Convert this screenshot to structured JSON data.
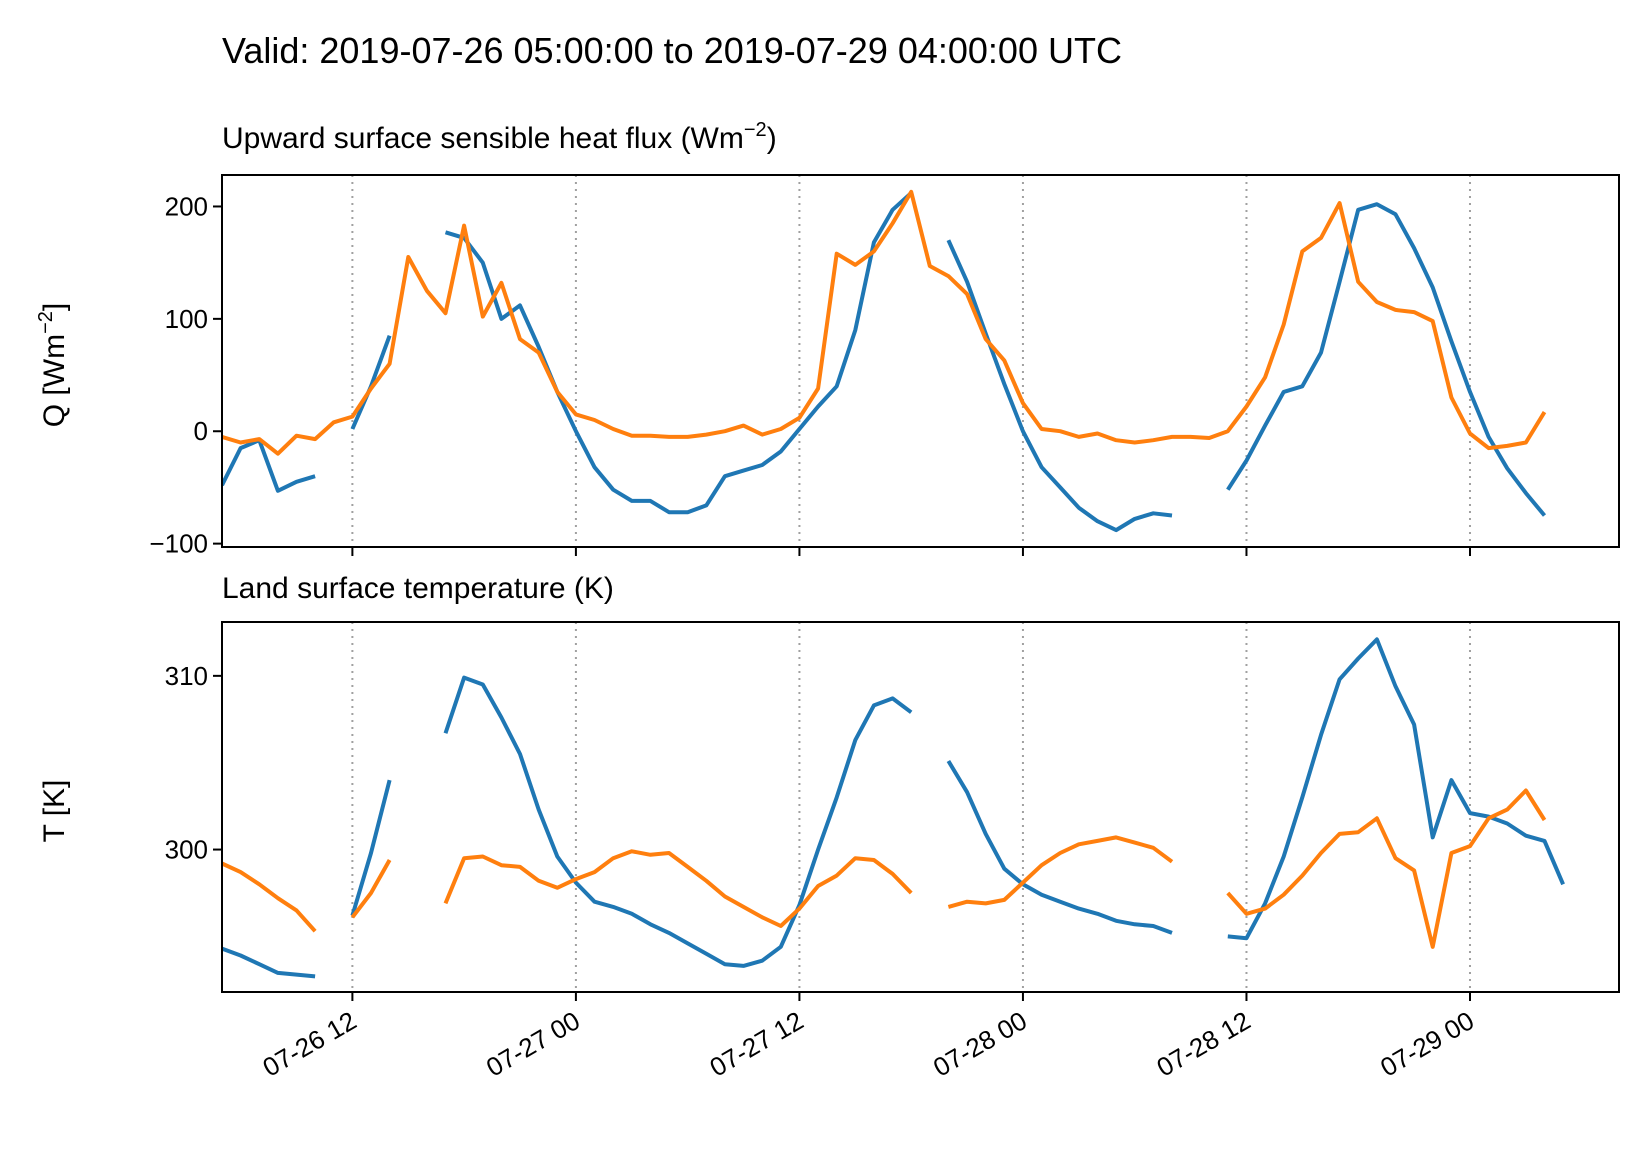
{
  "figure_title": "Valid: 2019-07-26 05:00:00 to 2019-07-29 04:00:00 UTC",
  "colors": {
    "series_1": "#1f77b4",
    "series_2": "#ff7f0e",
    "gridline": "#a0a0a0"
  },
  "chart_data": [
    {
      "type": "line",
      "title_text": "Upward surface sensible heat flux (Wm",
      "title_sup": "−2",
      "title_close": ")",
      "ylabel_text": "Q [Wm",
      "ylabel_sup": "−2",
      "ylabel_close": "]",
      "xlim": [
        "2019-07-26 05:00",
        "2019-07-29 08:00"
      ],
      "ylim": [
        -103,
        228
      ],
      "yticks": [
        200,
        100,
        0,
        -100
      ],
      "ytick_labels": [
        "200",
        "100",
        "0",
        "−100"
      ],
      "xticks": [
        "2019-07-26 12:00",
        "2019-07-27 00:00",
        "2019-07-27 12:00",
        "2019-07-28 00:00",
        "2019-07-28 12:00",
        "2019-07-29 00:00"
      ],
      "xtick_labels": [],
      "vertical_gridlines": true,
      "series": [
        {
          "segments": [
            {
              "start": "2019-07-26 05:00",
              "values": [
                -48,
                -15,
                -8,
                -53,
                -45,
                -40
              ]
            },
            {
              "start": "2019-07-26 12:00",
              "values": [
                2,
                40,
                85
              ]
            },
            {
              "start": "2019-07-26 17:00",
              "values": [
                177,
                172,
                150,
                100,
                112,
                75,
                35,
                0,
                -32,
                -52,
                -62,
                -62,
                -72,
                -72,
                -66,
                -40,
                -35,
                -30,
                -18,
                2,
                22,
                40,
                90,
                168,
                197,
                212
              ]
            },
            {
              "start": "2019-07-27 20:00",
              "values": [
                170,
                133,
                87,
                42,
                0,
                -32,
                -50,
                -68,
                -80,
                -88,
                -78,
                -73,
                -75
              ]
            },
            {
              "start": "2019-07-28 11:00",
              "values": [
                -52,
                -26,
                5,
                35,
                40,
                70,
                133,
                197,
                202,
                193,
                163,
                128,
                80,
                35,
                -5,
                -33,
                -55,
                -75
              ]
            }
          ]
        },
        {
          "segments": [
            {
              "start": "2019-07-26 05:00",
              "values": [
                -5,
                -10,
                -7,
                -20,
                -4,
                -7,
                8,
                13,
                38,
                60,
                155,
                125,
                105,
                183,
                102,
                132,
                82,
                70,
                35,
                15,
                10,
                2,
                -4,
                -4,
                -5,
                -5,
                -3,
                0,
                5,
                -3,
                2,
                12,
                38,
                158,
                148,
                160,
                185,
                213,
                147,
                138,
                122,
                82,
                63,
                25,
                2,
                0,
                -5,
                -2,
                -8,
                -10,
                -8,
                -5,
                -5,
                -6,
                0,
                22,
                48,
                95,
                160,
                172,
                203,
                133,
                115,
                108,
                106,
                98,
                30,
                -2,
                -15,
                -13,
                -10,
                17
              ]
            }
          ]
        }
      ]
    },
    {
      "type": "line",
      "title_text": "Land surface temperature (K)",
      "ylabel_text": "T [K]",
      "xlim": [
        "2019-07-26 05:00",
        "2019-07-29 08:00"
      ],
      "ylim": [
        291.8,
        313.1
      ],
      "yticks": [
        310,
        300
      ],
      "ytick_labels": [
        "310",
        "300"
      ],
      "xticks": [
        "2019-07-26 12:00",
        "2019-07-27 00:00",
        "2019-07-27 12:00",
        "2019-07-28 00:00",
        "2019-07-28 12:00",
        "2019-07-29 00:00"
      ],
      "xtick_labels": [
        "07-26 12",
        "07-27 00",
        "07-27 12",
        "07-28 00",
        "07-28 12",
        "07-29 00"
      ],
      "vertical_gridlines": true,
      "series": [
        {
          "segments": [
            {
              "start": "2019-07-26 05:00",
              "values": [
                294.3,
                293.9,
                293.4,
                292.9,
                292.8,
                292.7
              ]
            },
            {
              "start": "2019-07-26 12:00",
              "values": [
                296.2,
                299.8,
                304.0
              ]
            },
            {
              "start": "2019-07-26 17:00",
              "values": [
                306.7,
                309.9,
                309.5,
                307.6,
                305.5,
                302.3,
                299.6,
                298.1,
                297.0,
                296.7,
                296.3,
                295.7,
                295.2,
                294.6,
                294.0,
                293.4,
                293.3,
                293.6,
                294.4,
                296.8,
                300.0,
                303.0,
                306.3,
                308.3,
                308.7,
                307.9
              ]
            },
            {
              "start": "2019-07-27 20:00",
              "values": [
                305.1,
                303.3,
                300.9,
                298.9,
                298.0,
                297.4,
                297.0,
                296.6,
                296.3,
                295.9,
                295.7,
                295.6,
                295.2
              ]
            },
            {
              "start": "2019-07-28 11:00",
              "values": [
                295.0,
                294.9,
                296.9,
                299.6,
                303.0,
                306.6,
                309.8,
                311.0,
                312.1,
                309.4,
                307.2,
                300.7,
                304.0,
                302.1,
                301.9,
                301.5,
                300.8,
                300.5,
                298.0
              ]
            }
          ]
        },
        {
          "segments": [
            {
              "start": "2019-07-26 05:00",
              "values": [
                299.2,
                298.7,
                298.0,
                297.2,
                296.5,
                295.3
              ]
            },
            {
              "start": "2019-07-26 12:00",
              "values": [
                296.1,
                297.5,
                299.4
              ]
            },
            {
              "start": "2019-07-26 17:00",
              "values": [
                296.9,
                299.5,
                299.6,
                299.1,
                299.0,
                298.2,
                297.8,
                298.3,
                298.7,
                299.5,
                299.9,
                299.7,
                299.8,
                299.0,
                298.2,
                297.3,
                296.7,
                296.1,
                295.6,
                296.6,
                297.9,
                298.5,
                299.5,
                299.4,
                298.6,
                297.5
              ]
            },
            {
              "start": "2019-07-27 20:00",
              "values": [
                296.7,
                297.0,
                296.9,
                297.1,
                298.1,
                299.1,
                299.8,
                300.3,
                300.5,
                300.7,
                300.4,
                300.1,
                299.3
              ]
            },
            {
              "start": "2019-07-28 11:00",
              "values": [
                297.5,
                296.3,
                296.6,
                297.4,
                298.5,
                299.8,
                300.9,
                301.0,
                301.8,
                299.5,
                298.8,
                294.4,
                299.8,
                300.2,
                301.8,
                302.3,
                303.4,
                301.7
              ]
            }
          ]
        }
      ]
    }
  ]
}
